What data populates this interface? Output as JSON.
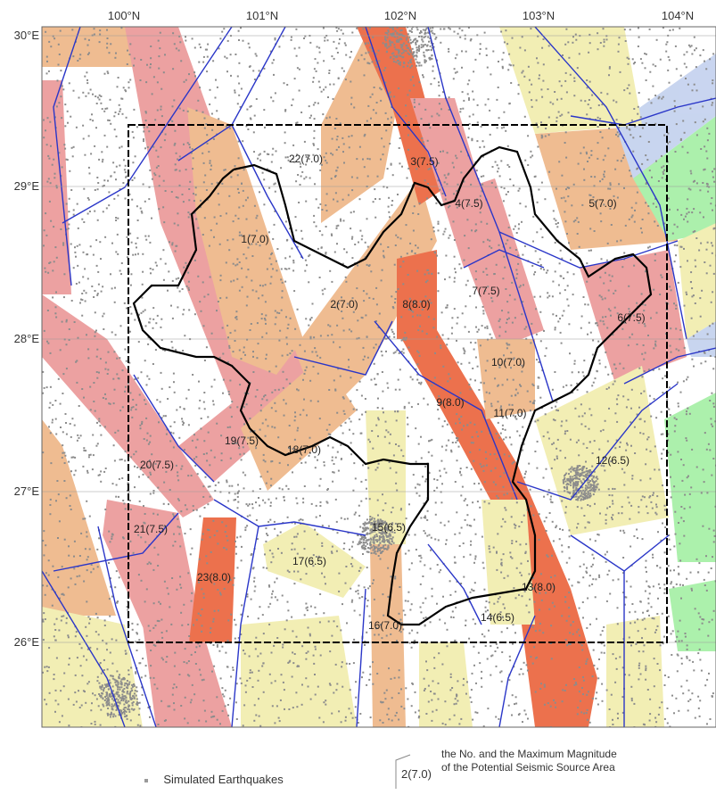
{
  "map": {
    "lon_labels": [
      "100°N",
      "101°N",
      "102°N",
      "103°N",
      "104°N"
    ],
    "lat_labels": [
      "30°E",
      "29°E",
      "28°E",
      "27°E",
      "26°E"
    ],
    "colors": {
      "mag_6_5": "#f2eeb0",
      "mag_7_0": "#efb98c",
      "mag_7_5": "#ec9c9c",
      "mag_8_0": "#ec6a44",
      "green": "#a8f0a8",
      "blue": "#c6d3ef",
      "fault": "#2a36c8",
      "boundary": "#000000",
      "dots": "#8c8c8c"
    },
    "sources": [
      {
        "label": "1(7.0)"
      },
      {
        "label": "2(7.0)"
      },
      {
        "label": "3(7.5)"
      },
      {
        "label": "4(7.5)"
      },
      {
        "label": "5(7.0)"
      },
      {
        "label": "6(7.5)"
      },
      {
        "label": "7(7.5)"
      },
      {
        "label": "8(8.0)"
      },
      {
        "label": "9(8.0)"
      },
      {
        "label": "10(7.0)"
      },
      {
        "label": "11(7.0)"
      },
      {
        "label": "12(6.5)"
      },
      {
        "label": "13(8.0)"
      },
      {
        "label": "14(6.5)"
      },
      {
        "label": "15(6.5)"
      },
      {
        "label": "16(7.0)"
      },
      {
        "label": "17(6.5)"
      },
      {
        "label": "18(7.0)"
      },
      {
        "label": "19(7.5)"
      },
      {
        "label": "20(7.5)"
      },
      {
        "label": "21(7.5)"
      },
      {
        "label": "22(7.0)"
      },
      {
        "label": "23(8.0)"
      }
    ]
  },
  "legend": {
    "dots_label": "Simulated Earthquakes",
    "example_label": "2(7.0)",
    "source_line1": "the No. and the Maximum Magnitude",
    "source_line2": "of the Potential Seismic Source Area"
  }
}
